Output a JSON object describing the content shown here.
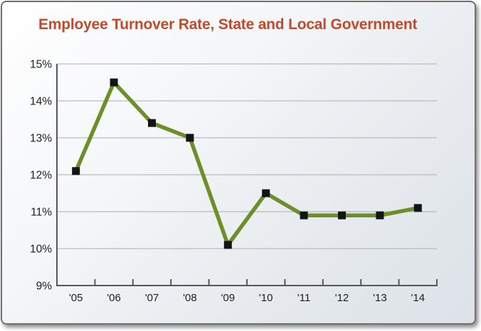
{
  "chart_data": {
    "type": "line",
    "title": "Employee Turnover Rate, State and Local Government",
    "categories": [
      "'05",
      "'06",
      "'07",
      "'08",
      "'09",
      "'10",
      "'11",
      "'12",
      "'13",
      "'14"
    ],
    "values": [
      12.1,
      14.5,
      13.4,
      13.0,
      10.1,
      11.5,
      10.9,
      10.9,
      10.9,
      11.1
    ],
    "unit": "%",
    "xlabel": "",
    "ylabel": "",
    "ylim": [
      9,
      15
    ],
    "y_tick_step": 1,
    "y_tick_labels": [
      "9%",
      "10%",
      "11%",
      "12%",
      "13%",
      "14%",
      "15%"
    ],
    "grid": "horizontal",
    "legend": "none",
    "colors": {
      "title": "#bf4a2d",
      "line": "#6d8f28",
      "marker": "#141414",
      "axis": "#55585a",
      "gridline": "#a8aeb4",
      "tick_label": "#1e1e1e",
      "card_border": "#6e7072",
      "background_start": "#ffffff",
      "background_end": "#dce2e8"
    }
  }
}
